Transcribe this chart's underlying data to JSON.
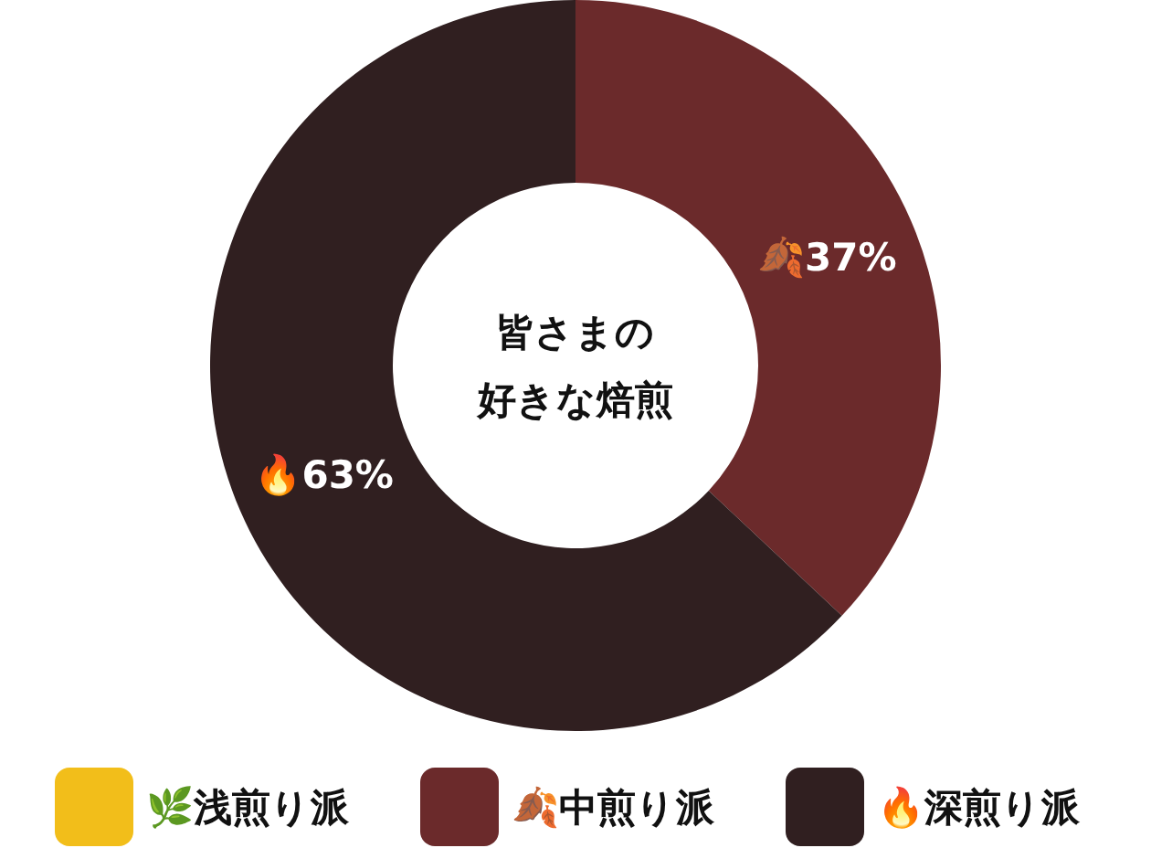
{
  "chart_data": {
    "type": "donut",
    "title": "皆さまの好きな焙煎",
    "categories": [
      "🌿浅煎り派",
      "🍂中煎り派",
      "🔥深煎り派"
    ],
    "values": [
      0,
      37,
      63
    ],
    "colors": [
      "#f2be1a",
      "#6b2a2b",
      "#301f20"
    ],
    "value_labels": [
      null,
      "🍂37%",
      "🔥63%"
    ],
    "legend": "bottom"
  }
}
